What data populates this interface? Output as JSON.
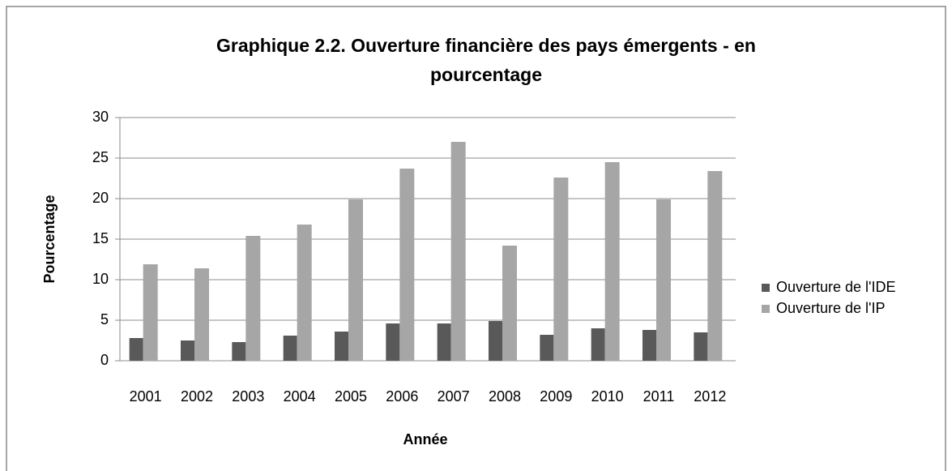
{
  "chart_data": {
    "type": "bar",
    "title": "Graphique 2.2. Ouverture financière des pays émergents - en pourcentage",
    "x_label": "Année",
    "y_label": "Pourcentage",
    "categories": [
      "2001",
      "2002",
      "2003",
      "2004",
      "2005",
      "2006",
      "2007",
      "2008",
      "2009",
      "2010",
      "2011",
      "2012"
    ],
    "series": [
      {
        "name": "Ouverture de l'IDE",
        "color": "#595959",
        "values": [
          2.8,
          2.5,
          2.3,
          3.1,
          3.6,
          4.6,
          4.6,
          4.9,
          3.2,
          4.0,
          3.8,
          3.5
        ]
      },
      {
        "name": "Ouverture de l'IP",
        "color": "#a6a6a6",
        "values": [
          11.9,
          11.4,
          15.4,
          16.8,
          19.9,
          23.7,
          27.0,
          14.2,
          22.6,
          24.5,
          19.9,
          23.4
        ]
      }
    ],
    "ylim": [
      0,
      30
    ],
    "yticks": [
      0,
      5,
      10,
      15,
      20,
      25,
      30
    ],
    "grid": true,
    "legend": "right"
  }
}
